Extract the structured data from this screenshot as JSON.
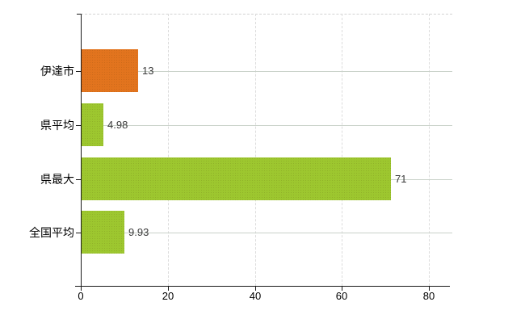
{
  "chart_data": {
    "type": "bar",
    "orientation": "horizontal",
    "title": "",
    "xlabel": "",
    "ylabel": "",
    "categories": [
      "伊達市",
      "県平均",
      "県最大",
      "全国平均"
    ],
    "values": [
      13,
      4.98,
      71,
      9.93
    ],
    "value_labels": [
      "13",
      "4.98",
      "71",
      "9.93"
    ],
    "bar_colors": [
      "#e2741e",
      "#9dc72f",
      "#9dc72f",
      "#9dc72f"
    ],
    "x_axis": {
      "min": 0,
      "max": 85,
      "ticks": [
        0,
        20,
        40,
        60,
        80
      ],
      "tick_labels": [
        "0",
        "20",
        "40",
        "60",
        "80"
      ]
    },
    "grid": {
      "vertical": true,
      "horizontal": true
    },
    "legend_position": "none",
    "background": "#ffffff"
  },
  "colors": {
    "bar_orange": "#e2741e",
    "bar_green": "#9dc72f",
    "axis": "#1a1a1a",
    "grid_vertical": "#dcdcdc",
    "grid_horizontal": "#c9d1c9",
    "value_label_text": "#3a3a3a",
    "category_label_text": "#000000"
  }
}
